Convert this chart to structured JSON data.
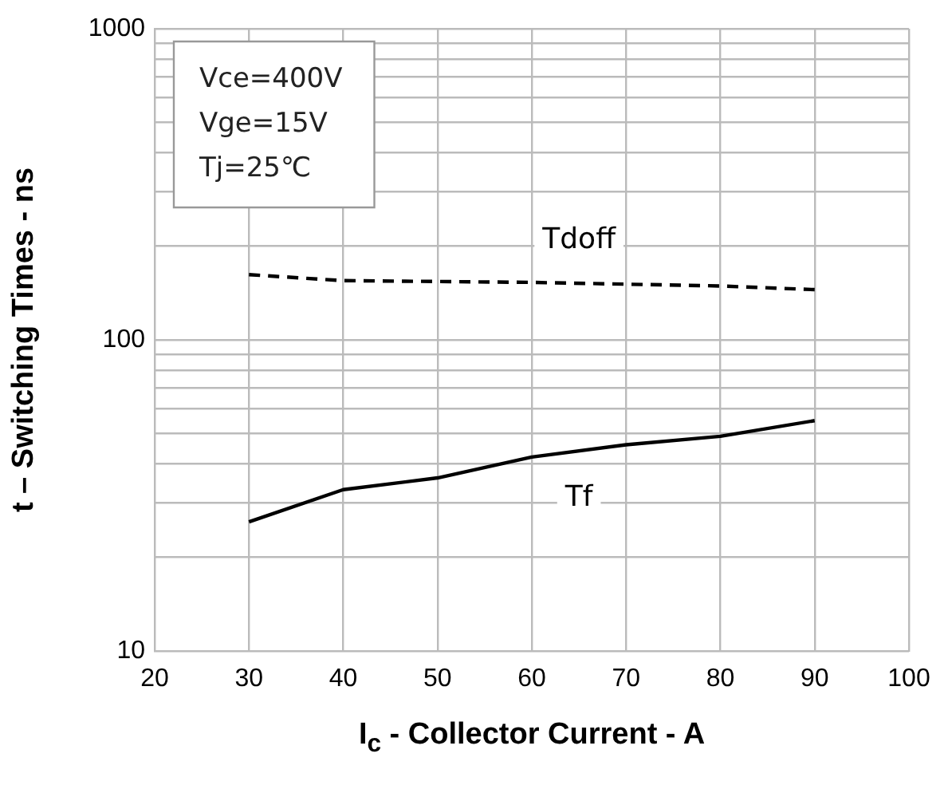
{
  "chart_data": {
    "type": "line",
    "xlabel": "I$_{c}$ - Collector Current - A",
    "ylabel": "t – Switching Times - ns",
    "x": [
      30,
      40,
      50,
      60,
      70,
      80,
      90
    ],
    "series": [
      {
        "name": "Tdoff",
        "color": "#000000",
        "line_style": "dashed",
        "values": [
          162,
          155,
          154,
          153,
          151,
          149,
          145
        ]
      },
      {
        "name": "Tf",
        "color": "#000000",
        "line_style": "solid",
        "values": [
          26,
          33,
          36,
          42,
          46,
          49,
          55
        ]
      }
    ],
    "xlim": [
      20,
      100
    ],
    "xticks": [
      20,
      30,
      40,
      50,
      60,
      70,
      80,
      90,
      100
    ],
    "log": "y",
    "ylim": [
      10,
      1000
    ],
    "yticks": [
      10,
      {
        "value": 20,
        "label": null
      },
      {
        "value": 30,
        "label": null
      },
      {
        "value": 40,
        "label": null
      },
      {
        "value": 50,
        "label": null
      },
      {
        "value": 60,
        "label": null
      },
      {
        "value": 70,
        "label": null
      },
      {
        "value": 80,
        "label": null
      },
      {
        "value": 90,
        "label": null
      },
      100,
      {
        "value": 200,
        "label": null
      },
      {
        "value": 300,
        "label": null
      },
      {
        "value": 400,
        "label": null
      },
      {
        "value": 500,
        "label": null
      },
      {
        "value": 600,
        "label": null
      },
      {
        "value": 700,
        "label": null
      },
      {
        "value": 800,
        "label": null
      },
      {
        "value": 900,
        "label": null
      },
      1000
    ],
    "grid": true,
    "legend": false,
    "marker": "none",
    "annotations": [
      "Vce=400V",
      "Vge=15V",
      "Tj=25℃"
    ]
  }
}
